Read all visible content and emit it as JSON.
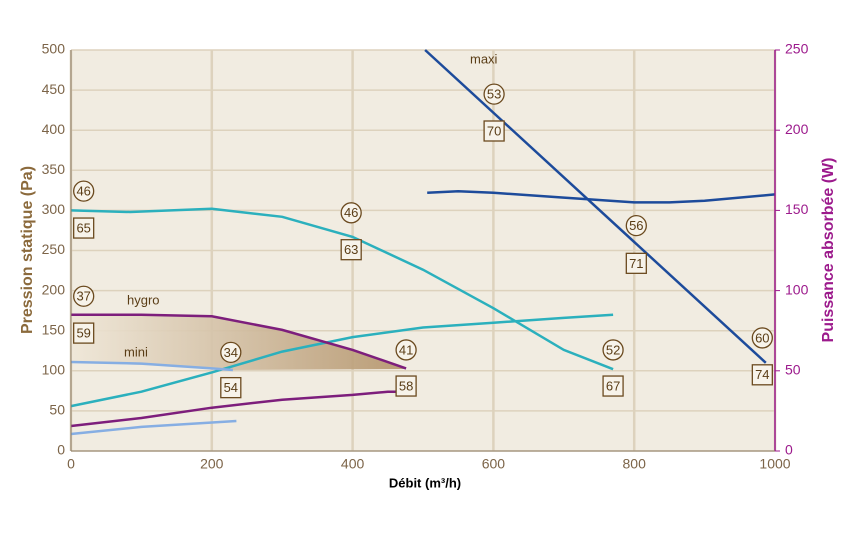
{
  "chart_data": {
    "type": "line",
    "xlabel": "Débit (m³/h)",
    "ylabel": "Pression statique (Pa)",
    "y2label": "Puissance absorbée (W)",
    "xlim": [
      0,
      1000
    ],
    "xticks": [
      0,
      200,
      400,
      600,
      800,
      1000
    ],
    "ylim": [
      0,
      500
    ],
    "yticks": [
      0,
      50,
      100,
      150,
      200,
      250,
      300,
      350,
      400,
      450,
      500
    ],
    "y2lim": [
      0,
      250
    ],
    "y2ticks": [
      0,
      50,
      100,
      150,
      200,
      250
    ],
    "grid": true,
    "series": [
      {
        "name": "maxi",
        "color": "#1d4b9b",
        "x": [
          503,
          987
        ],
        "values": [
          500,
          110
        ]
      },
      {
        "color": "#1d4b9b",
        "axis": "y2",
        "x": [
          506,
          550,
          600,
          700,
          800,
          850,
          900,
          1000
        ],
        "values": [
          161,
          162,
          161,
          158,
          155,
          155,
          156,
          160
        ]
      },
      {
        "color": "#2bb0bd",
        "x": [
          0,
          84,
          200,
          300,
          400,
          500,
          600,
          700,
          770
        ],
        "values": [
          300,
          298,
          302,
          292,
          267,
          226,
          178,
          126,
          102
        ]
      },
      {
        "color": "#2bb0bd",
        "axis": "y2",
        "x": [
          0,
          100,
          200,
          300,
          400,
          500,
          600,
          700,
          770
        ],
        "values": [
          28,
          37,
          49,
          62,
          71,
          77,
          80,
          83,
          85
        ]
      },
      {
        "name": "hygro",
        "color": "#7d1e7c",
        "x": [
          0,
          100,
          200,
          300,
          400,
          476
        ],
        "values": [
          170,
          170,
          168,
          151,
          126,
          103
        ]
      },
      {
        "color": "#7d1e7c",
        "axis": "y2",
        "x": [
          0,
          100,
          200,
          300,
          400,
          450,
          470
        ],
        "values": [
          15.6,
          20.6,
          27,
          32,
          35,
          37,
          37
        ]
      },
      {
        "name": "mini",
        "color": "#86aee3",
        "x": [
          0,
          100,
          200,
          230
        ],
        "values": [
          111,
          109,
          103,
          101
        ]
      },
      {
        "color": "#86aee3",
        "axis": "y2",
        "x": [
          0,
          100,
          235
        ],
        "values": [
          10.6,
          15,
          18.7
        ]
      }
    ],
    "annotations": [
      {
        "label": "46",
        "shape": "circle",
        "x": 18,
        "y": 324
      },
      {
        "label": "65",
        "shape": "square",
        "x": 18,
        "y": 278
      },
      {
        "label": "37",
        "shape": "circle",
        "x": 18,
        "y": 193
      },
      {
        "label": "59",
        "shape": "square",
        "x": 18,
        "y": 147
      },
      {
        "label": "34",
        "shape": "circle",
        "x": 227,
        "y": 123
      },
      {
        "label": "54",
        "shape": "square",
        "x": 227,
        "y": 79
      },
      {
        "label": "41",
        "shape": "circle",
        "x": 476,
        "y": 126
      },
      {
        "label": "58",
        "shape": "square",
        "x": 476,
        "y": 81
      },
      {
        "label": "46",
        "shape": "circle",
        "x": 398,
        "y": 297
      },
      {
        "label": "63",
        "shape": "square",
        "x": 398,
        "y": 251
      },
      {
        "label": "52",
        "shape": "circle",
        "x": 770,
        "y": 126
      },
      {
        "label": "67",
        "shape": "square",
        "x": 770,
        "y": 81
      },
      {
        "label": "53",
        "shape": "circle",
        "x": 601,
        "y": 445
      },
      {
        "label": "70",
        "shape": "square",
        "x": 601,
        "y": 399
      },
      {
        "label": "56",
        "shape": "circle",
        "x": 803,
        "y": 281
      },
      {
        "label": "71",
        "shape": "square",
        "x": 803,
        "y": 234
      },
      {
        "label": "60",
        "shape": "circle",
        "x": 982,
        "y": 141
      },
      {
        "label": "74",
        "shape": "square",
        "x": 982,
        "y": 95
      }
    ]
  }
}
